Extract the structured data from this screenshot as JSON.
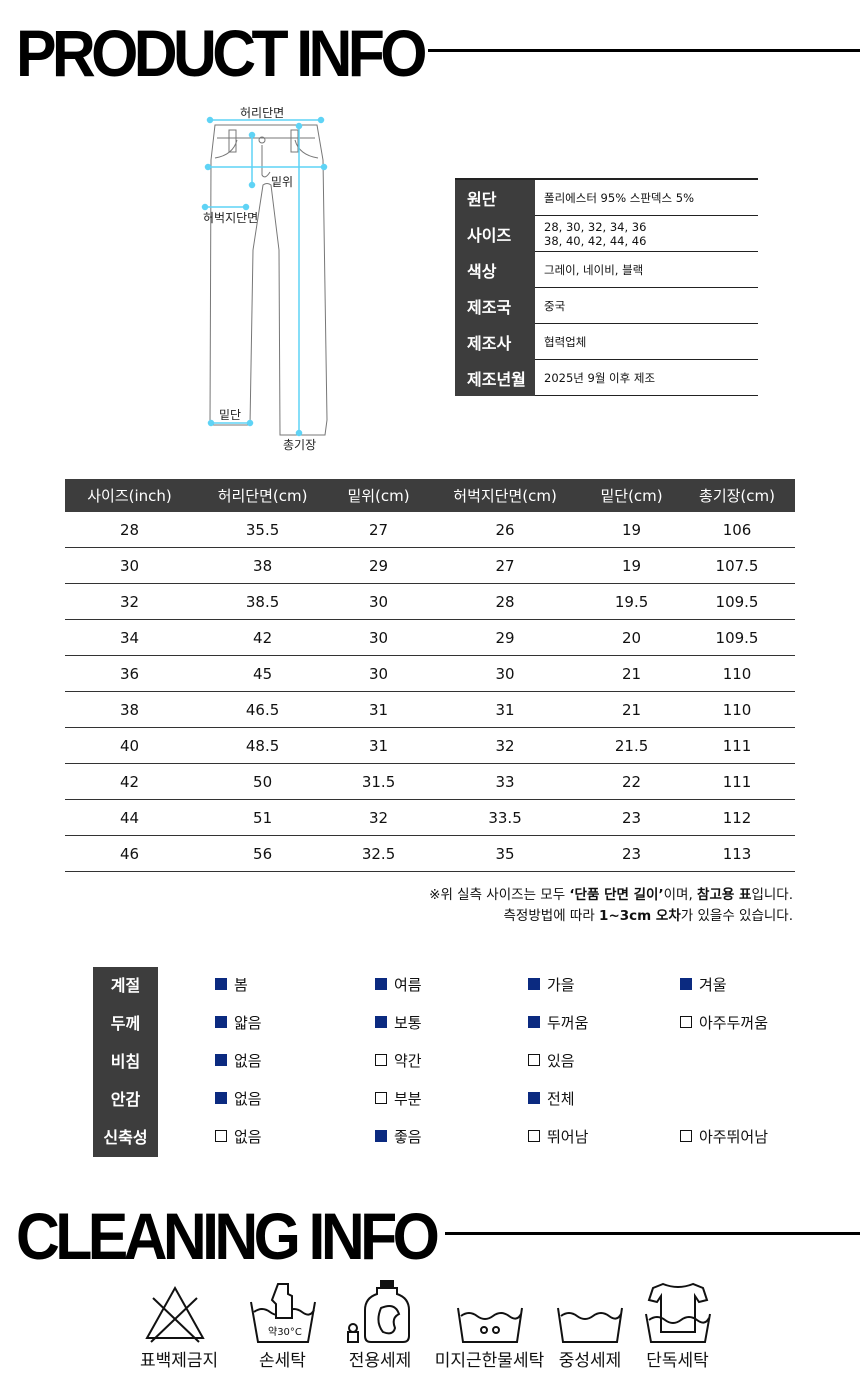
{
  "product_title": "PRODUCT INFO",
  "cleaning_title": "CLEANING INFO",
  "diagram_labels": {
    "waist": "허리단면",
    "rise": "밑위",
    "thigh": "허벅지단면",
    "hem": "밑단",
    "length": "총기장"
  },
  "info": [
    {
      "label": "원단",
      "value": "폴리에스터 95% 스판덱스 5%"
    },
    {
      "label": "사이즈",
      "value": "28, 30, 32, 34, 36",
      "value2": "38, 40, 42, 44, 46"
    },
    {
      "label": "색상",
      "value": "그레이, 네이비, 블랙"
    },
    {
      "label": "제조국",
      "value": "중국"
    },
    {
      "label": "제조사",
      "value": "협력업체"
    },
    {
      "label": "제조년월",
      "value": "2025년 9월 이후 제조"
    }
  ],
  "size_table": {
    "headers": [
      "사이즈(inch)",
      "허리단면(cm)",
      "밑위(cm)",
      "허벅지단면(cm)",
      "밑단(cm)",
      "총기장(cm)"
    ],
    "rows": [
      [
        "28",
        "35.5",
        "27",
        "26",
        "19",
        "106"
      ],
      [
        "30",
        "38",
        "29",
        "27",
        "19",
        "107.5"
      ],
      [
        "32",
        "38.5",
        "30",
        "28",
        "19.5",
        "109.5"
      ],
      [
        "34",
        "42",
        "30",
        "29",
        "20",
        "109.5"
      ],
      [
        "36",
        "45",
        "30",
        "30",
        "21",
        "110"
      ],
      [
        "38",
        "46.5",
        "31",
        "31",
        "21",
        "110"
      ],
      [
        "40",
        "48.5",
        "31",
        "32",
        "21.5",
        "111"
      ],
      [
        "42",
        "50",
        "31.5",
        "33",
        "22",
        "111"
      ],
      [
        "44",
        "51",
        "32",
        "33.5",
        "23",
        "112"
      ],
      [
        "46",
        "56",
        "32.5",
        "35",
        "23",
        "113"
      ]
    ]
  },
  "notes": {
    "line1_a": "※위 실측 사이즈는 모두 ",
    "line1_b": "‘단품 단면 길이’",
    "line1_c": "이며, ",
    "line1_d": "참고용 표",
    "line1_e": "입니다.",
    "line2_a": "측정방법에 따라 ",
    "line2_b": "1~3cm 오차",
    "line2_c": "가 있을수 있습니다."
  },
  "attributes": [
    {
      "label": "계절",
      "options": [
        {
          "text": "봄",
          "checked": true
        },
        {
          "text": "여름",
          "checked": true
        },
        {
          "text": "가을",
          "checked": true
        },
        {
          "text": "겨울",
          "checked": true
        }
      ]
    },
    {
      "label": "두께",
      "options": [
        {
          "text": "얇음",
          "checked": true
        },
        {
          "text": "보통",
          "checked": true
        },
        {
          "text": "두꺼움",
          "checked": true
        },
        {
          "text": "아주두꺼움",
          "checked": false
        }
      ]
    },
    {
      "label": "비침",
      "options": [
        {
          "text": "없음",
          "checked": true
        },
        {
          "text": "약간",
          "checked": false
        },
        {
          "text": "있음",
          "checked": false
        }
      ]
    },
    {
      "label": "안감",
      "options": [
        {
          "text": "없음",
          "checked": true
        },
        {
          "text": "부분",
          "checked": false
        },
        {
          "text": "전체",
          "checked": true
        }
      ]
    },
    {
      "label": "신축성",
      "options": [
        {
          "text": "없음",
          "checked": false
        },
        {
          "text": "좋음",
          "checked": true
        },
        {
          "text": "뛰어남",
          "checked": false
        },
        {
          "text": "아주뛰어남",
          "checked": false
        }
      ]
    }
  ],
  "care": [
    {
      "icon": "no-bleach-icon",
      "label": "표백제금지"
    },
    {
      "icon": "hand-wash-icon",
      "label": "손세탁",
      "temp": "약30°C"
    },
    {
      "icon": "detergent-bottle-icon",
      "label": "전용세제"
    },
    {
      "icon": "lukewarm-wash-icon",
      "label": "미지근한물세탁"
    },
    {
      "icon": "neutral-detergent-icon",
      "label": "중성세제"
    },
    {
      "icon": "wash-separately-icon",
      "label": "단독세탁"
    }
  ],
  "colors": {
    "checked": "#0b2a80",
    "header_bg": "#3d3d3d",
    "measure_line": "#5fd3f5"
  }
}
